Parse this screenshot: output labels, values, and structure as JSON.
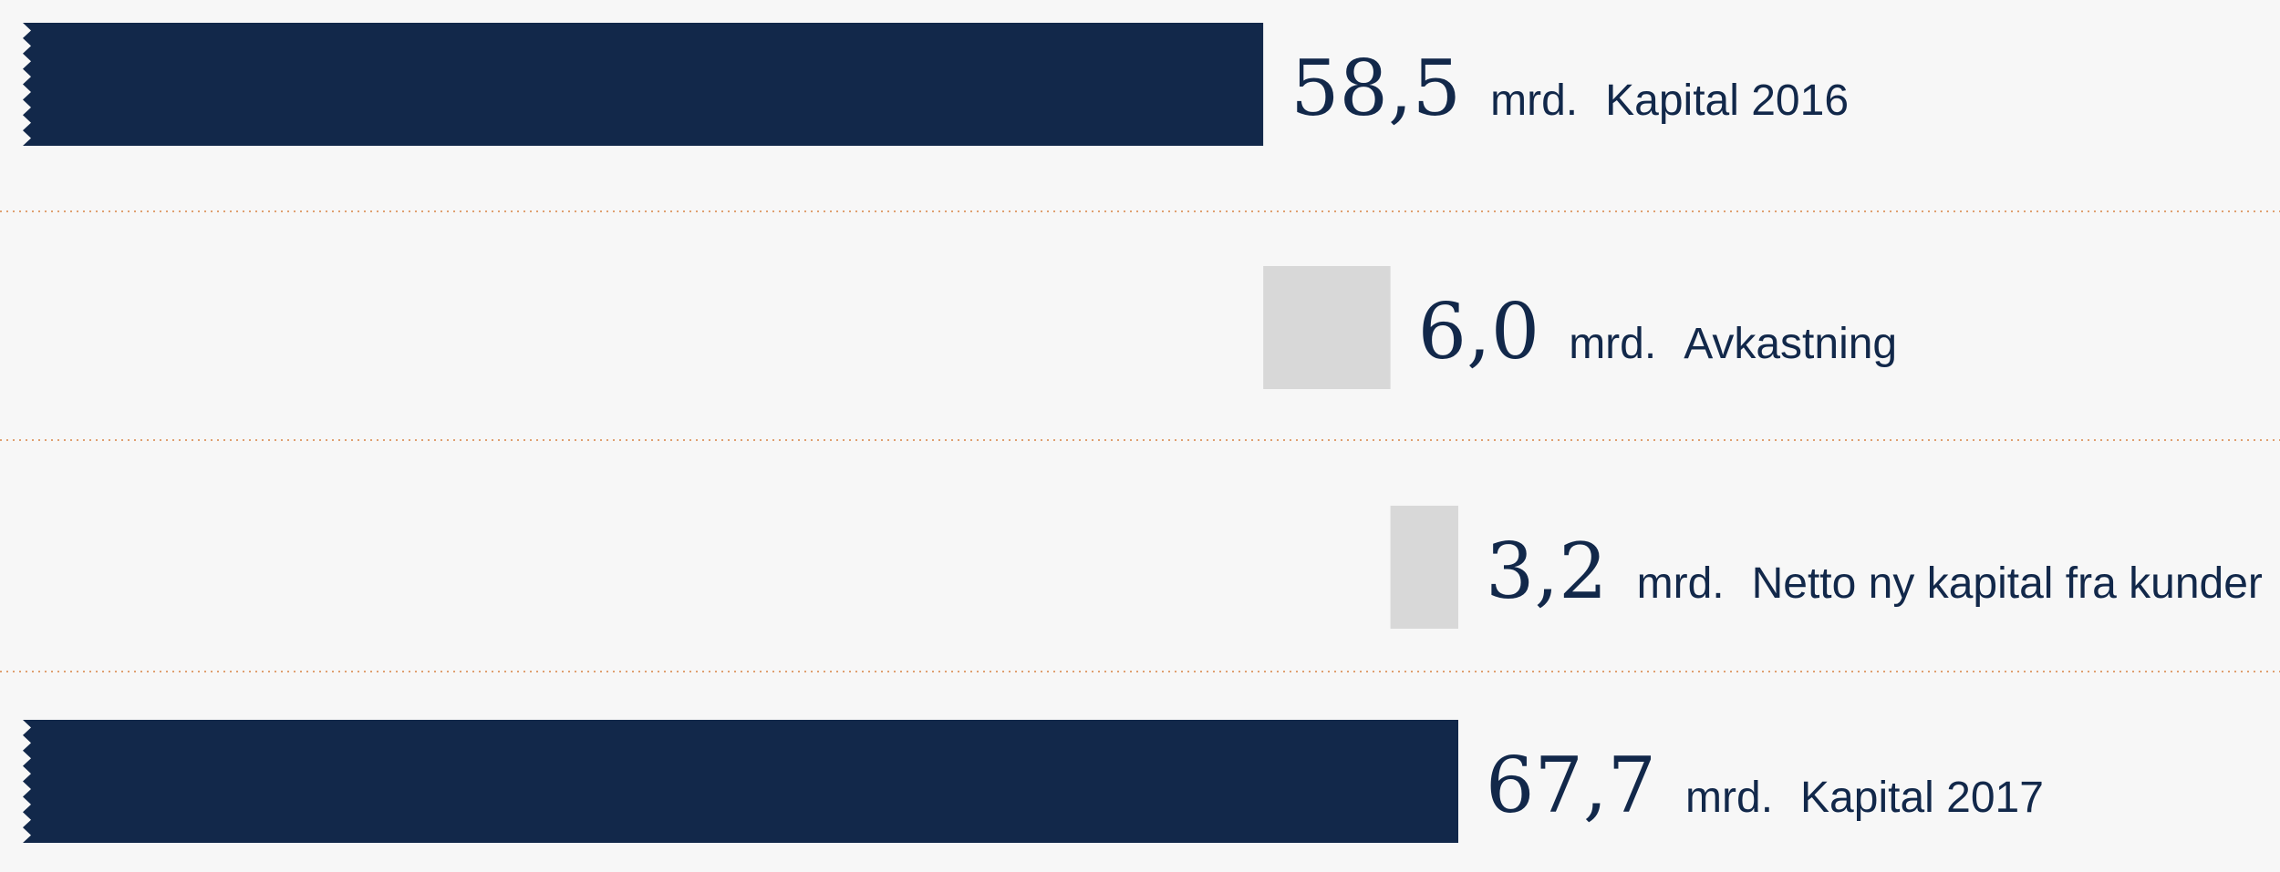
{
  "chart_data": {
    "type": "waterfall",
    "colors": {
      "total": "#12284a",
      "change": "#d8d8d8",
      "divider": "#e0a070",
      "text": "#12284a"
    },
    "unit": "mrd.",
    "items": [
      {
        "value": 58.5,
        "value_text": "58,5",
        "label": "Kapital 2016",
        "kind": "total"
      },
      {
        "value": 6.0,
        "value_text": "6,0",
        "label": "Avkastning",
        "kind": "change"
      },
      {
        "value": 3.2,
        "value_text": "3,2",
        "label": "Netto ny kapital fra kunder",
        "kind": "change"
      },
      {
        "value": 67.7,
        "value_text": "67,7",
        "label": "Kapital 2017",
        "kind": "total"
      }
    ]
  }
}
